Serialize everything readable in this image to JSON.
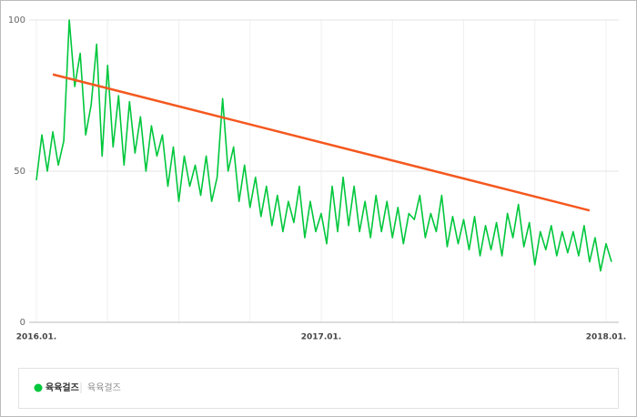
{
  "chart_data": {
    "type": "line",
    "categories": [
      "2016.01.",
      null,
      null,
      null,
      null,
      null,
      null,
      null,
      null,
      null,
      null,
      null,
      null,
      null,
      null,
      null,
      null,
      null,
      null,
      null,
      null,
      null,
      null,
      null,
      null,
      null,
      null,
      null,
      null,
      null,
      null,
      null,
      null,
      null,
      null,
      null,
      null,
      null,
      null,
      null,
      null,
      null,
      null,
      null,
      null,
      null,
      null,
      null,
      null,
      null,
      null,
      null,
      "2017.01.",
      null,
      null,
      null,
      null,
      null,
      null,
      null,
      null,
      null,
      null,
      null,
      null,
      null,
      null,
      null,
      null,
      null,
      null,
      null,
      null,
      null,
      null,
      null,
      null,
      null,
      null,
      null,
      null,
      null,
      null,
      null,
      null,
      null,
      null,
      null,
      null,
      null,
      null,
      null,
      null,
      null,
      null,
      null,
      null,
      null,
      null,
      null,
      null,
      null,
      null,
      null,
      "2018.01.",
      null
    ],
    "series": [
      {
        "name": "육육걸즈",
        "color": "#00c73c",
        "values": [
          47,
          62,
          50,
          63,
          52,
          60,
          100,
          78,
          89,
          62,
          72,
          92,
          55,
          85,
          58,
          75,
          52,
          73,
          56,
          68,
          50,
          65,
          55,
          62,
          45,
          58,
          40,
          55,
          45,
          52,
          42,
          55,
          40,
          48,
          74,
          50,
          58,
          40,
          52,
          38,
          48,
          35,
          45,
          32,
          42,
          30,
          40,
          33,
          45,
          28,
          40,
          30,
          36,
          26,
          45,
          30,
          48,
          32,
          45,
          30,
          40,
          28,
          42,
          30,
          40,
          28,
          38,
          26,
          36,
          34,
          42,
          28,
          36,
          30,
          42,
          25,
          35,
          26,
          34,
          24,
          35,
          22,
          32,
          24,
          33,
          22,
          36,
          28,
          39,
          25,
          33,
          19,
          30,
          24,
          32,
          22,
          30,
          23,
          30,
          22,
          32,
          20,
          28,
          17,
          26,
          20
        ]
      }
    ],
    "legend_sub": "육육걸즈",
    "trend": {
      "color": "#f4581f",
      "x": [
        3,
        101
      ],
      "values": [
        82,
        37
      ]
    },
    "ylim": [
      0,
      100
    ],
    "yticks": [
      0,
      50,
      100
    ],
    "grid": true
  }
}
